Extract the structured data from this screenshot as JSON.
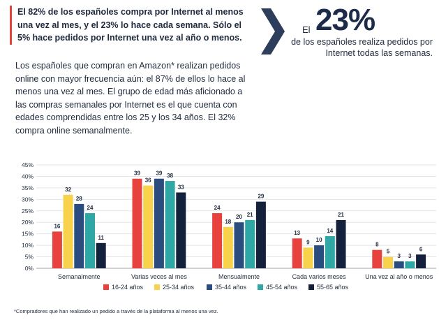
{
  "intro_text": "El 82% de los españoles compra por Internet al menos una vez al mes, y el 23% lo hace cada semana. Sólo el 5% hace pedidos por Internet una vez al año o menos.",
  "body_text": "Los españoles que compran en Amazon* realizan pedidos online con mayor frecuencia aún: el 87% de ellos lo hace al menos una vez al mes. El grupo de edad más aficionado a las compras semanales por Internet es el que cuenta con edades comprendidas entre los 25 y los 34 años. El 32% compra online semanalmente.",
  "highlight": {
    "prefix": "El",
    "value": "23%",
    "text": "de los españoles realiza pedidos por Internet todas las semanas."
  },
  "footnote": "*Compradores que han realizado un pedido a través de la plataforma al menos una vez.",
  "colors": {
    "accent": "#e8423f",
    "navy": "#1b2b49",
    "chevron": "#2d3e5c"
  },
  "chart_data": {
    "type": "bar",
    "categories": [
      "Semanalmente",
      "Varias veces al mes",
      "Mensualmente",
      "Cada varios meses",
      "Una vez al año o menos"
    ],
    "series": [
      {
        "name": "16-24 años",
        "color": "#e8423f",
        "values": [
          16,
          39,
          24,
          13,
          8
        ]
      },
      {
        "name": "25-34 años",
        "color": "#f7d24a",
        "values": [
          32,
          36,
          18,
          9,
          5
        ]
      },
      {
        "name": "35-44 años",
        "color": "#2b4c7e",
        "values": [
          28,
          39,
          20,
          10,
          3
        ]
      },
      {
        "name": "45-54 años",
        "color": "#2fa8a5",
        "values": [
          24,
          38,
          21,
          14,
          3
        ]
      },
      {
        "name": "55-65 años",
        "color": "#14213d",
        "values": [
          11,
          33,
          29,
          21,
          6
        ]
      }
    ],
    "yticks": [
      "0%",
      "5%",
      "10%",
      "15%",
      "20%",
      "25%",
      "30%",
      "35%",
      "40%",
      "45%"
    ],
    "ylim": [
      0,
      45
    ],
    "grid": true,
    "legend": "bottom"
  }
}
